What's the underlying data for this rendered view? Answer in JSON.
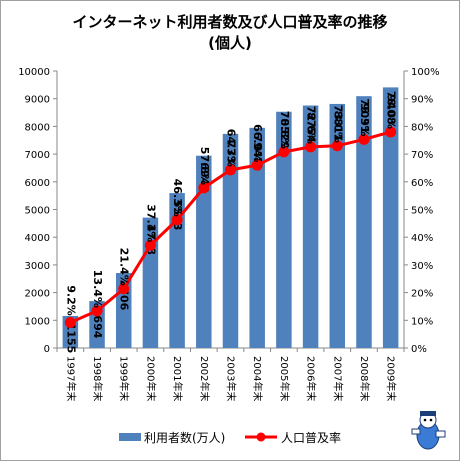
{
  "chart_data": {
    "type": "bar",
    "title": "インターネット利用者数及び人口普及率の推移",
    "subtitle": "(個人)",
    "categories": [
      "1997年末",
      "1998年末",
      "1999年末",
      "2000年末",
      "2001年末",
      "2002年末",
      "2003年末",
      "2004年末",
      "2005年末",
      "2006年末",
      "2007年末",
      "2008年末",
      "2009年末"
    ],
    "series": [
      {
        "name": "利用者数(万人)",
        "type": "bar",
        "axis": "left",
        "color": "#4f81bd",
        "values": [
          1155,
          1694,
          2706,
          4708,
          5593,
          6942,
          7730,
          7948,
          8529,
          8754,
          8811,
          9091,
          9408
        ]
      },
      {
        "name": "人口普及率",
        "type": "line",
        "axis": "right",
        "color": "#ff0000",
        "values": [
          9.2,
          13.4,
          21.4,
          37.1,
          46.3,
          57.8,
          64.3,
          66.0,
          70.8,
          72.6,
          73.0,
          75.3,
          78.0
        ],
        "labels": [
          "9.2%",
          "13.4%",
          "21.4%",
          "37.1%",
          "46.3%",
          "57.8%",
          "64.3%",
          "66.0%",
          "70.8%",
          "72.6%",
          "73.0%",
          "75.3%",
          "78.0%"
        ]
      }
    ],
    "y_left": {
      "ylim": [
        0,
        10000
      ],
      "ticks": [
        0,
        1000,
        2000,
        3000,
        4000,
        5000,
        6000,
        7000,
        8000,
        9000,
        10000
      ]
    },
    "y_right": {
      "ylim": [
        0,
        100
      ],
      "ticks": [
        "0%",
        "10%",
        "20%",
        "30%",
        "40%",
        "50%",
        "60%",
        "70%",
        "80%",
        "90%",
        "100%"
      ]
    },
    "grid": false,
    "legend": "bottom"
  }
}
